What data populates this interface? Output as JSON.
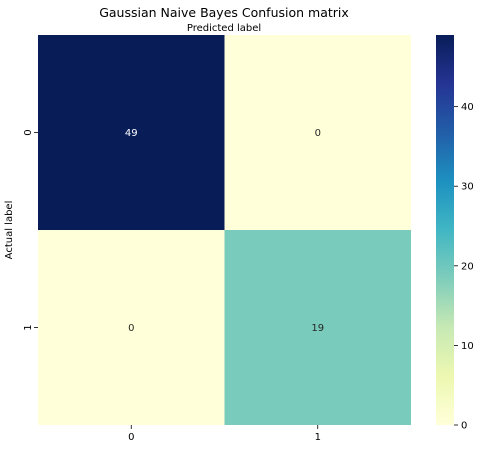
{
  "chart_data": {
    "type": "heatmap",
    "title": "Gaussian Naive Bayes Confusion matrix",
    "xlabel": "Predicted label",
    "ylabel": "Actual label",
    "x_categories": [
      "0",
      "1"
    ],
    "y_categories": [
      "0",
      "1"
    ],
    "values": [
      [
        49,
        0
      ],
      [
        0,
        19
      ]
    ],
    "colormap": "YlGnBu",
    "colorbar": {
      "range": [
        0,
        49
      ],
      "ticks": [
        "0",
        "10",
        "20",
        "30",
        "40"
      ]
    },
    "annotations": true,
    "xlabel_position": "top"
  }
}
